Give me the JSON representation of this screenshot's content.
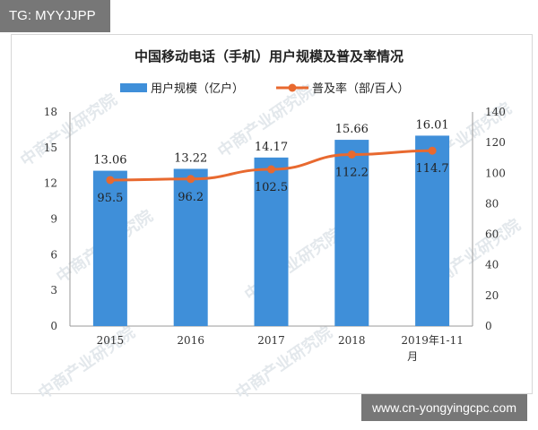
{
  "source_tag": "TG: MYYJJPP",
  "website": "www.cn-yongyingcpc.com",
  "watermark": "中商产业研究院",
  "colors": {
    "bar": "#3f8fd9",
    "line": "#e8692f"
  },
  "chart_data": {
    "type": "bar+line",
    "title": "中国移动电话（手机）用户规模及普及率情况",
    "categories": [
      "2015",
      "2016",
      "2017",
      "2018",
      "2019年1-11月"
    ],
    "series": [
      {
        "name": "用户规模（亿户）",
        "type": "bar",
        "axis": "left",
        "values": [
          13.06,
          13.22,
          14.17,
          15.66,
          16.01
        ]
      },
      {
        "name": "普及率（部/百人）",
        "type": "line",
        "axis": "right",
        "values": [
          95.5,
          96.2,
          102.5,
          112.2,
          114.7
        ]
      }
    ],
    "y_left": {
      "min": 0,
      "max": 18,
      "ticks": [
        0,
        3,
        6,
        9,
        12,
        15,
        18
      ]
    },
    "y_right": {
      "min": 0,
      "max": 140,
      "ticks": [
        0,
        20,
        40,
        60,
        80,
        100,
        120,
        140
      ]
    },
    "legend_position": "top",
    "grid": false
  }
}
